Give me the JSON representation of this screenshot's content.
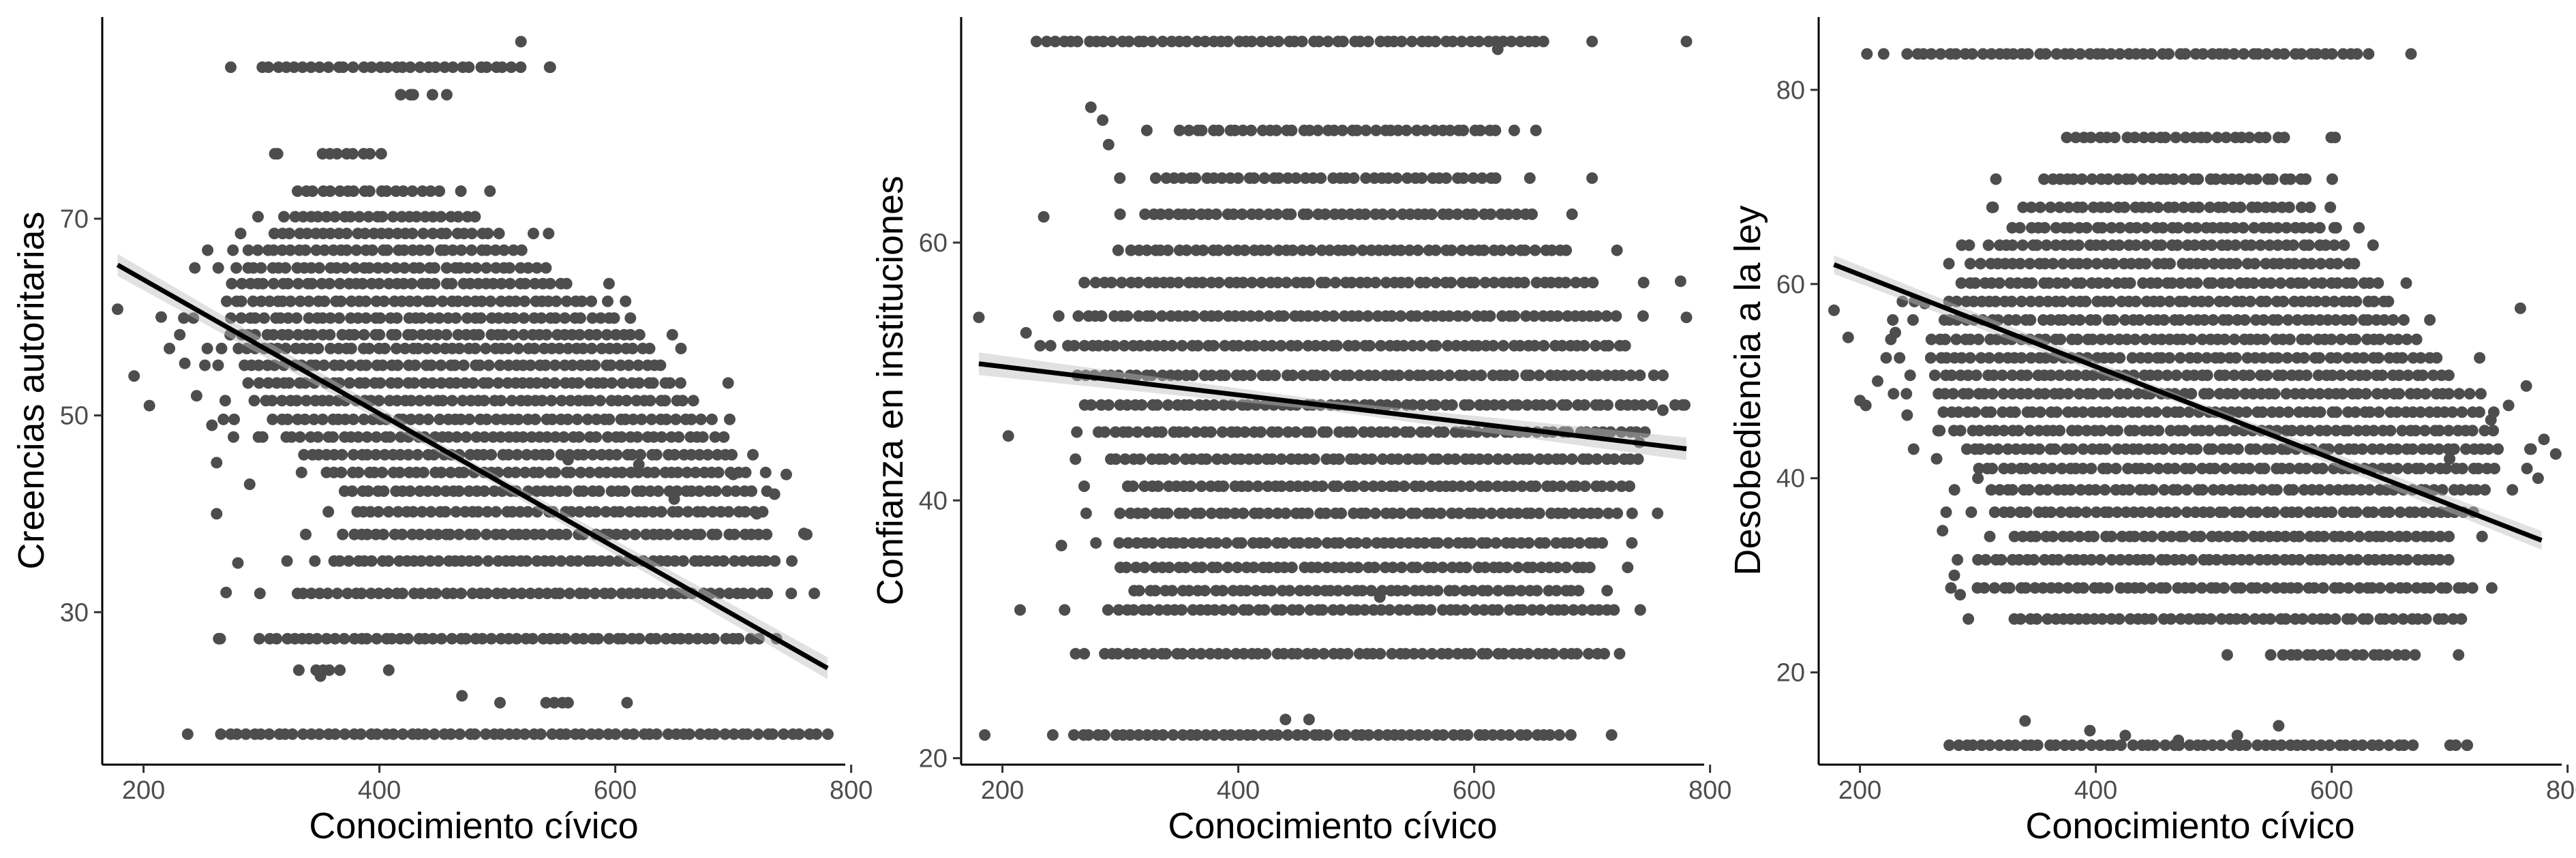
{
  "colors": {
    "points": "#4d4d4d",
    "fit_line": "#000000",
    "ci_band": "#bdbdbd",
    "axes": "#000000"
  },
  "chart_data": [
    {
      "type": "scatter",
      "xlabel": "Conocimiento cívico",
      "ylabel": "Creencias autoritarias",
      "xlim": [
        165,
        795
      ],
      "ylim": [
        14.5,
        90.5
      ],
      "xticks": [
        200,
        400,
        600,
        800
      ],
      "yticks": [
        30,
        50,
        70
      ],
      "trend": {
        "type": "linear",
        "x": [
          178,
          780
        ],
        "y": [
          65.3,
          24.3
        ],
        "ci_halfwidth": 0.7
      },
      "y_levels": [
        17.6,
        20.8,
        24.1,
        27.3,
        31.9,
        35.2,
        37.9,
        40.2,
        42.3,
        44.2,
        46.0,
        47.8,
        49.6,
        51.5,
        53.3,
        55.1,
        56.8,
        58.2,
        59.9,
        61.6,
        63.4,
        65.0,
        66.8,
        68.5,
        70.2,
        72.8,
        76.6,
        82.6,
        85.4
      ],
      "level_ranges": [
        [
          265,
          770
        ],
        [
          540,
          560
        ],
        [
          345,
          365
        ],
        [
          300,
          720
        ],
        [
          330,
          730
        ],
        [
          360,
          735
        ],
        [
          370,
          730
        ],
        [
          380,
          725
        ],
        [
          370,
          715
        ],
        [
          355,
          710
        ],
        [
          335,
          700
        ],
        [
          320,
          690
        ],
        [
          310,
          680
        ],
        [
          295,
          665
        ],
        [
          290,
          655
        ],
        [
          285,
          640
        ],
        [
          280,
          630
        ],
        [
          275,
          620
        ],
        [
          275,
          600
        ],
        [
          270,
          580
        ],
        [
          275,
          560
        ],
        [
          280,
          540
        ],
        [
          290,
          520
        ],
        [
          310,
          500
        ],
        [
          320,
          480
        ],
        [
          330,
          450
        ],
        [
          350,
          400
        ],
        [
          420,
          430
        ],
        [
          300,
          520
        ]
      ],
      "extra_points": [
        [
          178,
          60.8
        ],
        [
          192,
          54.0
        ],
        [
          205,
          51.0
        ],
        [
          215,
          60.0
        ],
        [
          222,
          56.8
        ],
        [
          235,
          55.3
        ],
        [
          245,
          52.0
        ],
        [
          258,
          49.0
        ],
        [
          262,
          40.0
        ],
        [
          262,
          45.2
        ],
        [
          265,
          27.3
        ],
        [
          270,
          32.0
        ],
        [
          280,
          35.0
        ],
        [
          290,
          43.0
        ],
        [
          350,
          23.5
        ],
        [
          470,
          21.5
        ],
        [
          520,
          88.0
        ],
        [
          560,
          45.5
        ],
        [
          610,
          20.8
        ],
        [
          620,
          45.0
        ],
        [
          650,
          41.5
        ],
        [
          700,
          44.0
        ],
        [
          720,
          40.0
        ],
        [
          735,
          42.0
        ],
        [
          745,
          44.0
        ],
        [
          760,
          38.0
        ]
      ]
    },
    {
      "type": "scatter",
      "xlabel": "Conocimiento cívico",
      "ylabel": "Confianza en instituciones",
      "xlim": [
        165,
        795
      ],
      "ylim": [
        19.5,
        77.5
      ],
      "xticks": [
        200,
        400,
        600,
        800
      ],
      "yticks": [
        20,
        40,
        60
      ],
      "trend": {
        "type": "linear",
        "x": [
          180,
          780
        ],
        "y": [
          50.6,
          44.0
        ],
        "ci_halfwidth": 0.55
      },
      "y_levels": [
        21.8,
        28.1,
        31.5,
        33.0,
        34.8,
        36.7,
        39.0,
        41.1,
        43.2,
        45.3,
        47.4,
        49.7,
        52.0,
        54.3,
        56.9,
        59.4,
        62.2,
        65.0,
        68.7,
        75.6
      ],
      "level_ranges": [
        [
          260,
          680
        ],
        [
          285,
          710
        ],
        [
          290,
          720
        ],
        [
          310,
          690
        ],
        [
          300,
          700
        ],
        [
          300,
          710
        ],
        [
          300,
          720
        ],
        [
          305,
          730
        ],
        [
          290,
          740
        ],
        [
          280,
          745
        ],
        [
          270,
          750
        ],
        [
          265,
          740
        ],
        [
          255,
          730
        ],
        [
          265,
          720
        ],
        [
          280,
          700
        ],
        [
          300,
          680
        ],
        [
          320,
          650
        ],
        [
          330,
          620
        ],
        [
          350,
          620
        ],
        [
          230,
          660
        ]
      ],
      "extra_points": [
        [
          180,
          54.2
        ],
        [
          185,
          21.8
        ],
        [
          205,
          45.0
        ],
        [
          215,
          31.5
        ],
        [
          220,
          53.0
        ],
        [
          235,
          62.0
        ],
        [
          250,
          36.5
        ],
        [
          275,
          70.5
        ],
        [
          285,
          69.5
        ],
        [
          290,
          67.6
        ],
        [
          440,
          23.0
        ],
        [
          460,
          23.0
        ],
        [
          500,
          33.0
        ],
        [
          520,
          32.5
        ],
        [
          620,
          75.0
        ],
        [
          700,
          65.0
        ],
        [
          740,
          44.5
        ],
        [
          760,
          47.0
        ],
        [
          775,
          57.0
        ],
        [
          780,
          54.2
        ],
        [
          780,
          75.6
        ]
      ]
    },
    {
      "type": "scatter",
      "xlabel": "Conocimiento cívico",
      "ylabel": "Desobediencia a la ley",
      "xlim": [
        165,
        795
      ],
      "ylim": [
        10.5,
        87.5
      ],
      "xticks": [
        200,
        400,
        600,
        800
      ],
      "yticks": [
        20,
        40,
        60,
        80
      ],
      "trend": {
        "type": "linear",
        "x": [
          178,
          778
        ],
        "y": [
          62.0,
          33.6
        ],
        "ci_halfwidth": 0.6
      },
      "y_levels": [
        12.5,
        21.8,
        25.5,
        28.7,
        31.6,
        34.0,
        36.5,
        38.8,
        41.0,
        43.0,
        44.9,
        46.8,
        48.7,
        50.6,
        52.4,
        54.3,
        56.3,
        58.2,
        60.1,
        62.1,
        64.0,
        65.8,
        67.9,
        70.8,
        75.1,
        83.7
      ],
      "level_ranges": [
        [
          275,
          670
        ],
        [
          550,
          670
        ],
        [
          330,
          710
        ],
        [
          300,
          720
        ],
        [
          300,
          700
        ],
        [
          330,
          700
        ],
        [
          315,
          720
        ],
        [
          310,
          730
        ],
        [
          300,
          740
        ],
        [
          290,
          740
        ],
        [
          280,
          735
        ],
        [
          270,
          725
        ],
        [
          265,
          715
        ],
        [
          265,
          700
        ],
        [
          260,
          690
        ],
        [
          260,
          670
        ],
        [
          270,
          660
        ],
        [
          275,
          650
        ],
        [
          285,
          640
        ],
        [
          295,
          620
        ],
        [
          310,
          610
        ],
        [
          330,
          590
        ],
        [
          340,
          580
        ],
        [
          355,
          580
        ],
        [
          375,
          560
        ],
        [
          240,
          630
        ]
      ],
      "extra_points": [
        [
          178,
          57.3
        ],
        [
          190,
          54.5
        ],
        [
          200,
          48.0
        ],
        [
          205,
          47.5
        ],
        [
          215,
          50.0
        ],
        [
          230,
          55.0
        ],
        [
          240,
          46.5
        ],
        [
          255,
          58.0
        ],
        [
          265,
          42.0
        ],
        [
          270,
          34.6
        ],
        [
          280,
          30.0
        ],
        [
          285,
          28.0
        ],
        [
          300,
          40.0
        ],
        [
          340,
          15.0
        ],
        [
          395,
          14.0
        ],
        [
          425,
          13.5
        ],
        [
          470,
          13.0
        ],
        [
          520,
          13.5
        ],
        [
          555,
          14.5
        ],
        [
          700,
          42.0
        ],
        [
          715,
          12.5
        ],
        [
          735,
          46.0
        ],
        [
          750,
          47.5
        ],
        [
          760,
          57.5
        ],
        [
          765,
          49.5
        ],
        [
          775,
          40.0
        ],
        [
          780,
          44.0
        ],
        [
          790,
          42.5
        ]
      ]
    }
  ]
}
